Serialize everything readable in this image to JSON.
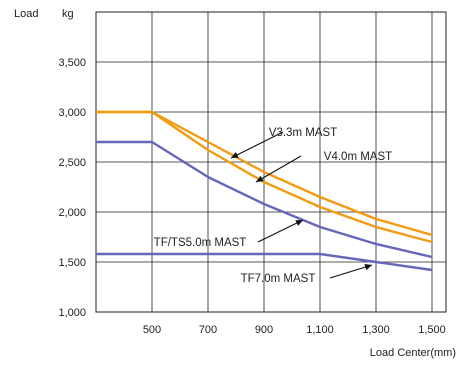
{
  "chart_data": {
    "type": "line",
    "ylabel": "Load",
    "yunit": "kg",
    "xlabel": "Load Center(mm)",
    "xlim": [
      300,
      1550
    ],
    "ylim": [
      1000,
      4000
    ],
    "grid": true,
    "x_ticks": [
      "500",
      "700",
      "900",
      "1,100",
      "1,300",
      "1,500"
    ],
    "x_tick_values": [
      500,
      700,
      900,
      1100,
      1300,
      1500
    ],
    "y_ticks": [
      "1,000",
      "1,500",
      "2,000",
      "2,500",
      "3,000",
      "3,500"
    ],
    "y_tick_values": [
      1000,
      1500,
      2000,
      2500,
      3000,
      3500
    ],
    "series": [
      {
        "name": "V3.3m MAST",
        "color": "#f39c12",
        "x": [
          300,
          500,
          700,
          900,
          1100,
          1300,
          1500
        ],
        "y": [
          3000,
          3000,
          2700,
          2400,
          2150,
          1930,
          1770
        ]
      },
      {
        "name": "V4.0m MAST",
        "color": "#f39c12",
        "x": [
          300,
          500,
          700,
          900,
          1100,
          1300,
          1500
        ],
        "y": [
          3000,
          3000,
          2620,
          2300,
          2050,
          1850,
          1700
        ]
      },
      {
        "name": "TF/TS5.0m MAST",
        "color": "#6666bb",
        "x": [
          300,
          500,
          700,
          900,
          1100,
          1300,
          1500
        ],
        "y": [
          2700,
          2700,
          2350,
          2080,
          1850,
          1680,
          1550
        ]
      },
      {
        "name": "TF7.0m MAST",
        "color": "#6666bb",
        "x": [
          300,
          500,
          700,
          900,
          1100,
          1300,
          1500
        ],
        "y": [
          1580,
          1580,
          1580,
          1580,
          1580,
          1500,
          1420
        ]
      }
    ]
  }
}
